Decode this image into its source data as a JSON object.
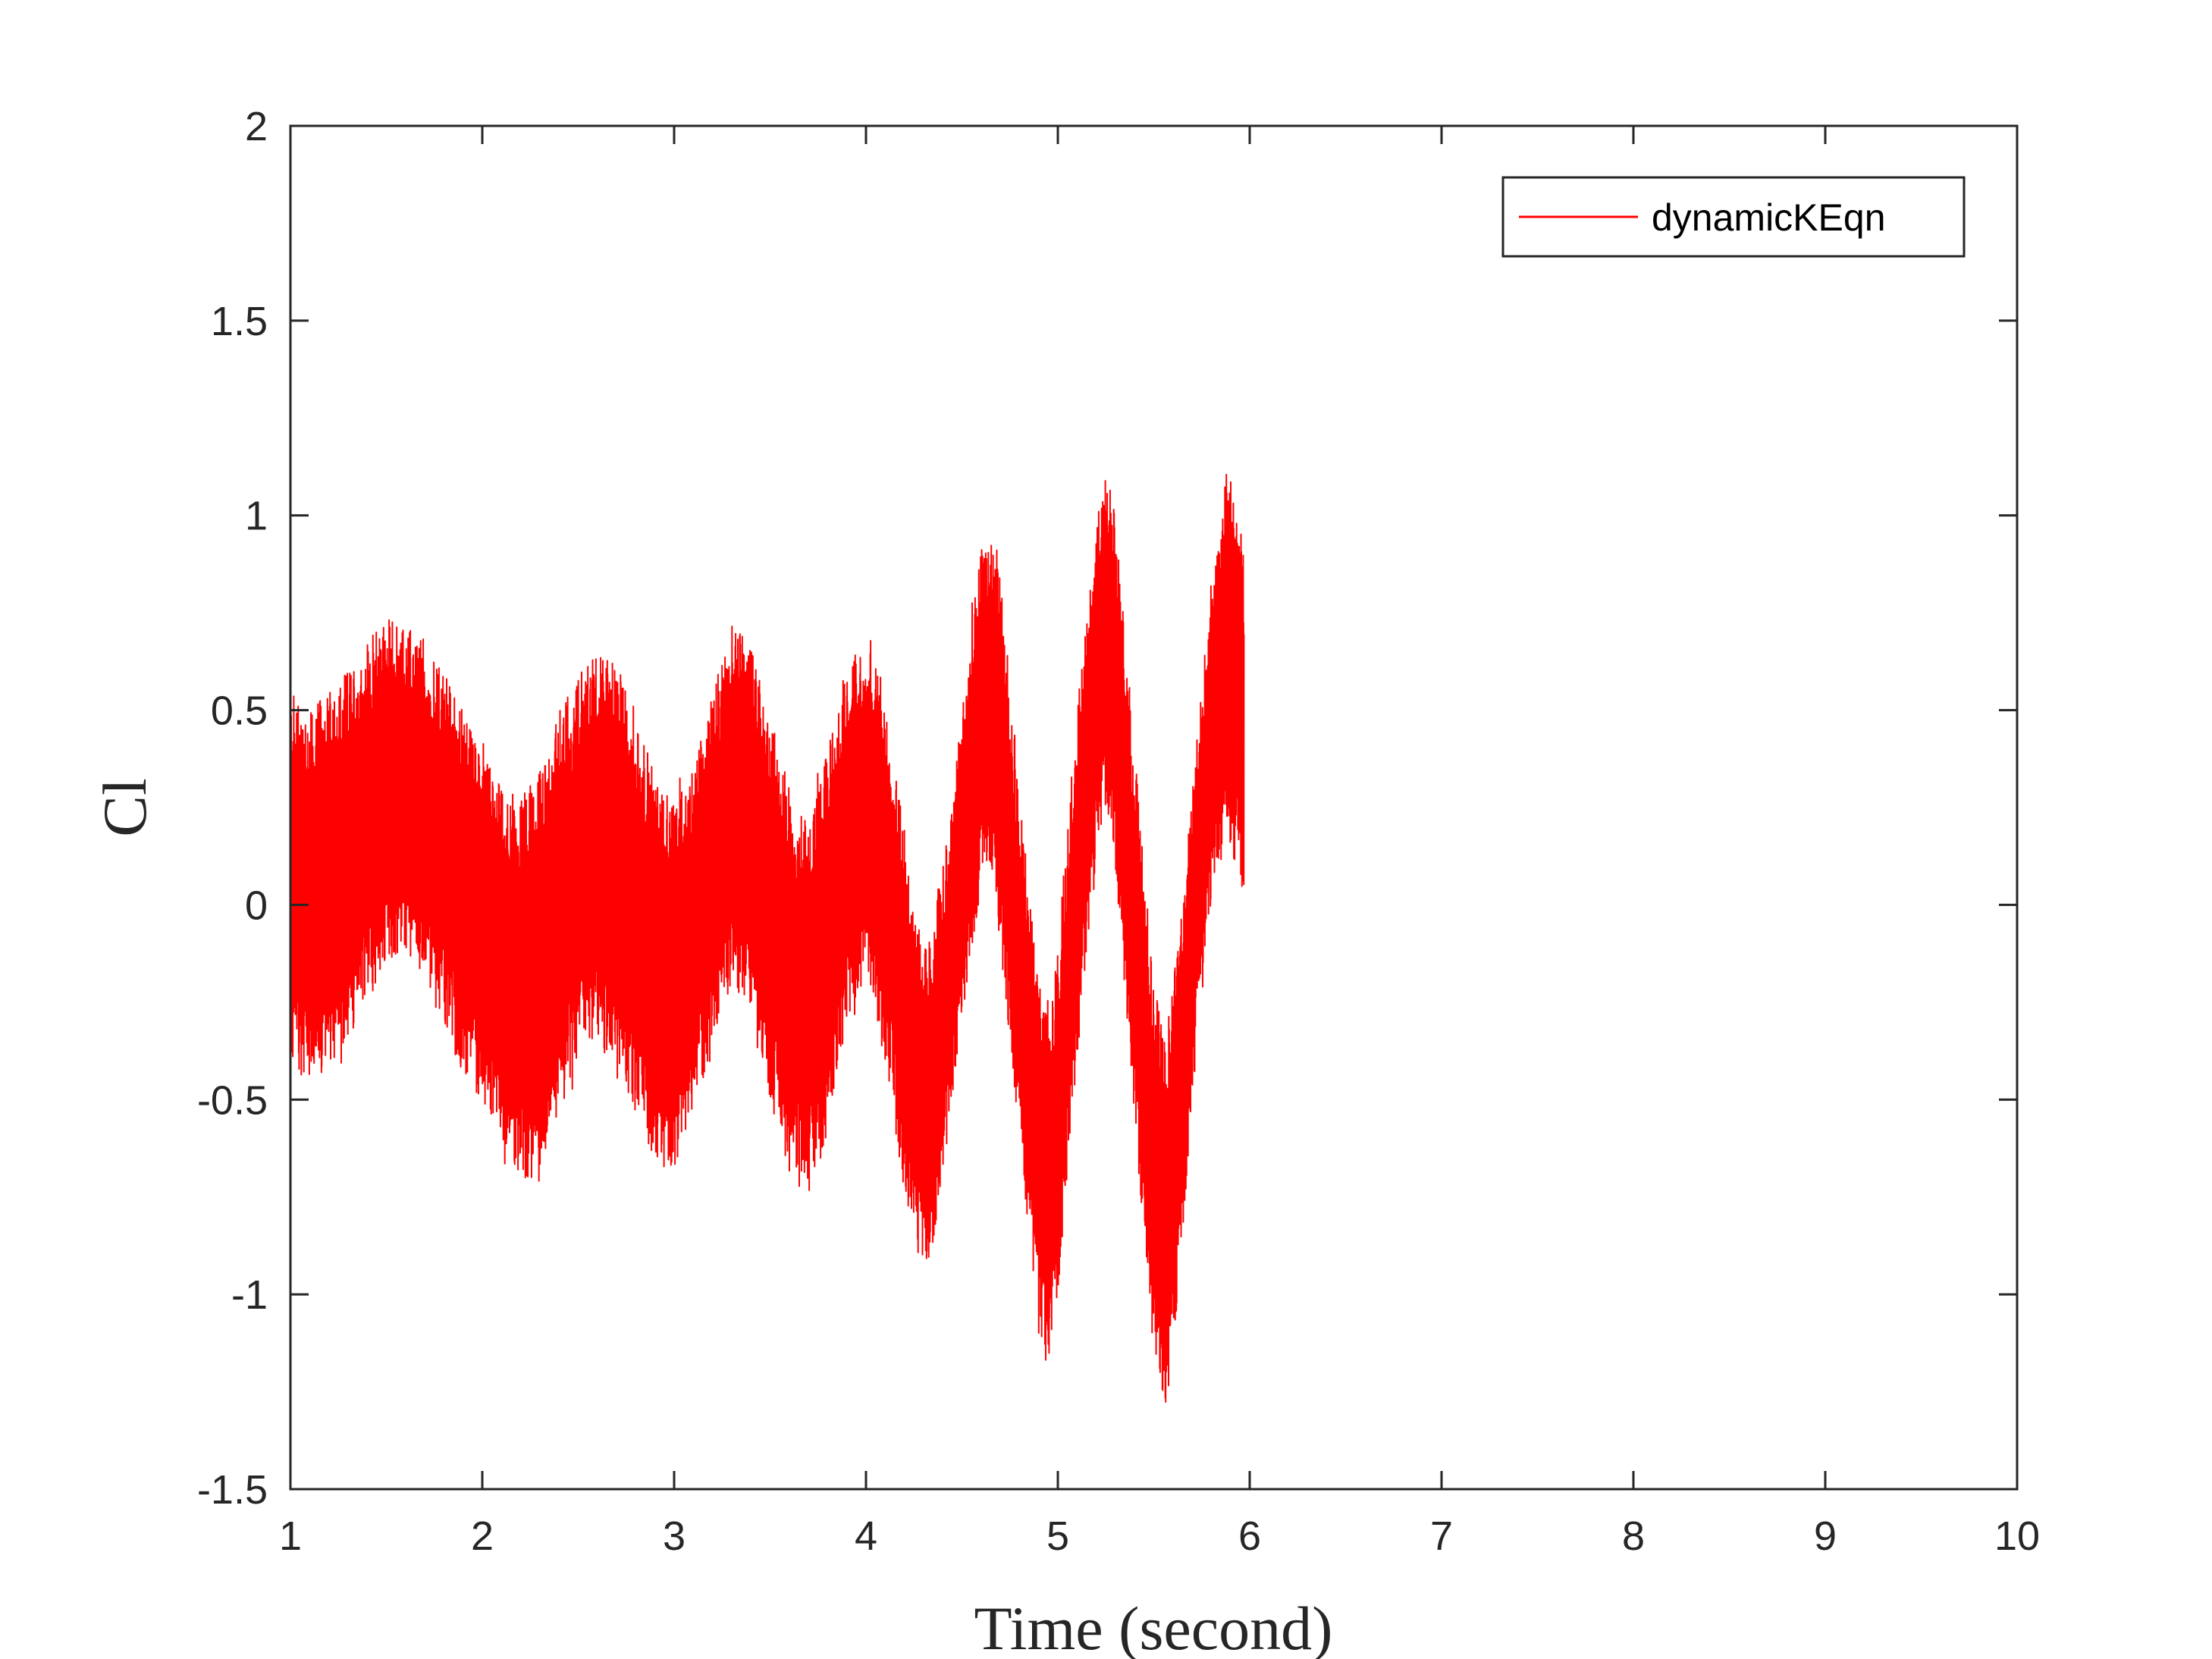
{
  "chart_data": {
    "type": "line",
    "title": "",
    "xlabel": "Time (second)",
    "ylabel": "Cl",
    "xlim": [
      1,
      10
    ],
    "ylim": [
      -1.5,
      2
    ],
    "x_ticks": [
      "1",
      "2",
      "3",
      "4",
      "5",
      "6",
      "7",
      "8",
      "9",
      "10"
    ],
    "y_ticks": [
      "-1.5",
      "-1",
      "-0.5",
      "0",
      "0.5",
      "1",
      "1.5",
      "2"
    ],
    "grid": false,
    "legend_position": "top-right",
    "series": [
      {
        "name": "dynamicKEqn",
        "color": "#ff0000",
        "x_range": [
          1,
          5.97
        ],
        "envelope_x": [
          1.0,
          1.1,
          1.2,
          1.3,
          1.4,
          1.5,
          1.6,
          1.7,
          1.8,
          1.9,
          2.0,
          2.1,
          2.2,
          2.3,
          2.4,
          2.5,
          2.6,
          2.7,
          2.8,
          2.9,
          3.0,
          3.1,
          3.2,
          3.3,
          3.4,
          3.5,
          3.6,
          3.7,
          3.8,
          3.9,
          4.0,
          4.1,
          4.2,
          4.3,
          4.35,
          4.4,
          4.5,
          4.6,
          4.65,
          4.7,
          4.8,
          4.9,
          4.95,
          5.0,
          5.1,
          5.2,
          5.25,
          5.3,
          5.4,
          5.5,
          5.56,
          5.6,
          5.7,
          5.8,
          5.88,
          5.93,
          5.97
        ],
        "envelope_upper": [
          0.55,
          0.5,
          0.55,
          0.6,
          0.68,
          0.74,
          0.72,
          0.68,
          0.6,
          0.5,
          0.42,
          0.3,
          0.28,
          0.35,
          0.5,
          0.6,
          0.65,
          0.62,
          0.5,
          0.35,
          0.25,
          0.35,
          0.55,
          0.72,
          0.68,
          0.5,
          0.3,
          0.2,
          0.4,
          0.62,
          0.7,
          0.55,
          0.2,
          -0.1,
          -0.05,
          0.1,
          0.5,
          0.92,
          0.95,
          0.85,
          0.3,
          -0.2,
          -0.3,
          -0.1,
          0.5,
          1.0,
          1.1,
          1.0,
          0.4,
          -0.2,
          -0.35,
          -0.2,
          0.3,
          0.85,
          1.15,
          1.08,
          0.9
        ],
        "envelope_lower": [
          -0.4,
          -0.45,
          -0.42,
          -0.35,
          -0.25,
          -0.15,
          -0.12,
          -0.18,
          -0.3,
          -0.45,
          -0.5,
          -0.6,
          -0.7,
          -0.72,
          -0.55,
          -0.4,
          -0.35,
          -0.4,
          -0.55,
          -0.65,
          -0.7,
          -0.55,
          -0.35,
          -0.2,
          -0.3,
          -0.5,
          -0.7,
          -0.75,
          -0.6,
          -0.3,
          -0.2,
          -0.4,
          -0.75,
          -0.95,
          -0.88,
          -0.7,
          -0.3,
          0.05,
          0.1,
          -0.1,
          -0.6,
          -1.1,
          -1.2,
          -1.0,
          -0.4,
          0.15,
          0.25,
          0.1,
          -0.6,
          -1.15,
          -1.28,
          -1.2,
          -0.5,
          0.0,
          0.15,
          0.1,
          0.05
        ]
      }
    ]
  }
}
